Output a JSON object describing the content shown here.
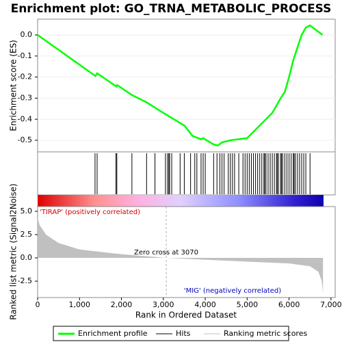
{
  "chart_data": [
    {
      "type": "line",
      "title": "Enrichment plot: GO_TRNA_METABOLIC_PROCESS",
      "ylabel": "Enrichment score (ES)",
      "x": [
        0,
        1380,
        1420,
        1880,
        1900,
        2250,
        2600,
        3000,
        3500,
        3700,
        3900,
        3950,
        4200,
        4300,
        4400,
        4600,
        4800,
        5000,
        5200,
        5400,
        5600,
        5800,
        5900,
        6000,
        6100,
        6200,
        6300,
        6400,
        6500,
        6800
      ],
      "series": [
        {
          "name": "Enrichment profile",
          "color": "#00ff00",
          "values": [
            0.0,
            -0.195,
            -0.182,
            -0.245,
            -0.238,
            -0.285,
            -0.32,
            -0.37,
            -0.43,
            -0.48,
            -0.495,
            -0.49,
            -0.52,
            -0.525,
            -0.51,
            -0.5,
            -0.495,
            -0.49,
            -0.45,
            -0.41,
            -0.37,
            -0.3,
            -0.27,
            -0.2,
            -0.12,
            -0.06,
            0.0,
            0.035,
            0.045,
            0.0
          ]
        }
      ],
      "xlim": [
        0,
        7100
      ],
      "ylim": [
        -0.555,
        0.075
      ],
      "yticks": [
        {
          "value": 0,
          "label": "0.0"
        },
        -0.1,
        -0.2,
        -0.3,
        -0.4,
        -0.5
      ],
      "grid": true
    },
    {
      "type": "rug",
      "xlim": [
        0,
        7100
      ],
      "series": [
        {
          "name": "Hits",
          "color": "#000000",
          "x": [
            1370,
            1420,
            1870,
            1890,
            2250,
            2600,
            2800,
            3050,
            3100,
            3130,
            3150,
            3200,
            3400,
            3500,
            3650,
            3750,
            3800,
            3900,
            3950,
            4000,
            4200,
            4280,
            4350,
            4400,
            4450,
            4550,
            4600,
            4650,
            4700,
            4800,
            4900,
            4950,
            5000,
            5050,
            5100,
            5150,
            5200,
            5250,
            5300,
            5350,
            5400,
            5420,
            5450,
            5500,
            5550,
            5600,
            5650,
            5700,
            5720,
            5750,
            5800,
            5820,
            5850,
            5900,
            5950,
            6000,
            6050,
            6100,
            6120,
            6150,
            6200,
            6250,
            6300,
            6350,
            6400,
            6500
          ]
        }
      ]
    },
    {
      "type": "area",
      "xlabel": "Rank in Ordered Dataset",
      "ylabel": "Ranked list metric (Signal2Noise)",
      "x": [
        0,
        50,
        200,
        500,
        1000,
        2000,
        3070,
        4000,
        5000,
        6000,
        6500,
        6700,
        6780,
        6810
      ],
      "series": [
        {
          "name": "Ranking metric scores",
          "color": "#c0c0c0",
          "values": [
            4.3,
            3.5,
            2.5,
            1.6,
            0.9,
            0.4,
            0,
            -0.2,
            -0.4,
            -0.6,
            -0.9,
            -1.5,
            -2.5,
            -3.8
          ]
        }
      ],
      "xlim": [
        0,
        7100
      ],
      "ylim": [
        -4.26,
        5.51
      ],
      "xticks": [
        0,
        {
          "value": 1000,
          "label": "1,000"
        },
        {
          "value": 2000,
          "label": "2,000"
        },
        {
          "value": 3000,
          "label": "3,000"
        },
        {
          "value": 4000,
          "label": "4,000"
        },
        {
          "value": 5000,
          "label": "5,000"
        },
        {
          "value": 6000,
          "label": "6,000"
        },
        {
          "value": 7000,
          "label": "7,000"
        }
      ],
      "yticks": [
        {
          "value": 5,
          "label": "5.0"
        },
        2.5,
        {
          "value": 0,
          "label": "0.0"
        },
        -2.5
      ],
      "zero_cross": 3070,
      "annotations": [
        "'TIRAP' (positively correlated)",
        "Zero cross at 3070",
        "'MIG' (negatively correlated)"
      ]
    }
  ]
}
